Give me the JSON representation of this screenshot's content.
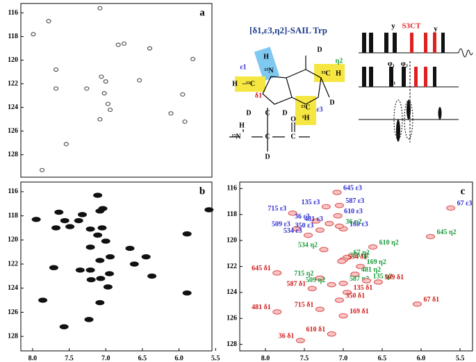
{
  "chart_data": [
    {
      "type": "scatter",
      "label": "a",
      "peak_color": "#555555",
      "x": [
        7.08,
        7.78,
        7.99,
        6.75,
        7.06,
        7.0,
        7.02,
        6.97,
        6.94,
        7.26,
        7.68,
        6.54,
        6.4,
        5.81,
        5.95,
        5.92,
        7.08,
        7.54,
        7.68,
        6.11,
        6.83,
        7.87
      ],
      "values": [
        115.6,
        116.7,
        117.8,
        118.6,
        121.4,
        121.8,
        122.8,
        123.7,
        124.2,
        122.4,
        122.4,
        121.7,
        119.0,
        119.9,
        122.9,
        125.2,
        125.0,
        127.1,
        120.8,
        124.5,
        118.7,
        129.3
      ],
      "xlim": [
        8.16,
        5.55
      ],
      "ylim": [
        129.9,
        115.2
      ],
      "yticks": [
        116,
        118,
        120,
        122,
        124,
        126,
        128
      ]
    },
    {
      "type": "scatter",
      "label": "b",
      "peak_color": "#111111",
      "x": [
        7.11,
        7.04,
        7.08,
        7.64,
        7.32,
        7.95,
        7.56,
        7.37,
        7.49,
        7.68,
        7.05,
        5.59,
        7.21,
        7.11,
        7.0,
        5.89,
        7.21,
        6.67,
        6.94,
        6.45,
        7.08,
        6.61,
        7.35,
        7.21,
        7.71,
        6.95,
        7.07,
        7.2,
        6.97,
        6.37,
        7.86,
        7.08,
        5.89,
        7.57,
        7.23
      ],
      "values": [
        116.3,
        117.4,
        117.6,
        117.7,
        117.9,
        118.3,
        118.4,
        118.4,
        118.9,
        119.0,
        119.0,
        117.5,
        119.1,
        119.6,
        120.1,
        119.5,
        120.6,
        120.7,
        121.4,
        121.4,
        121.7,
        122.0,
        122.5,
        122.5,
        122.3,
        122.8,
        123.2,
        123.3,
        123.9,
        123.0,
        125.0,
        125.2,
        124.4,
        127.2,
        126.6
      ],
      "xlim": [
        8.16,
        5.55
      ],
      "ylim": [
        129.2,
        115.2
      ],
      "yticks": [
        116,
        118,
        120,
        122,
        124,
        126,
        128
      ],
      "xticks": [
        {
          "value": 8,
          "label": "8.0"
        },
        7.5,
        {
          "value": 7,
          "label": "7.0"
        },
        6.5,
        {
          "value": 6,
          "label": "6.0"
        },
        5.5
      ]
    },
    {
      "type": "scatter",
      "label": "c",
      "peak_color": "#e06060",
      "series": [
        {
          "color": "#2b2bd0",
          "x": [
            7.08,
            7.65,
            7.22,
            7.05,
            7.35,
            7.18,
            7.07,
            7.6,
            7.3,
            7.0,
            7.45,
            5.62
          ],
          "values": [
            116.3,
            117.9,
            117.4,
            117.3,
            118.5,
            118.7,
            118.1,
            119.1,
            119.2,
            119.1,
            119.6,
            117.5
          ],
          "labels": [
            "645 ε3",
            "715 ε3",
            "135 ε3",
            "587 ε3",
            "36 ε3",
            "481 ε3",
            "610 ε3",
            "509 ε3",
            "350 ε3",
            "169 ε3",
            "534 ε3",
            "67 ε3"
          ]
        },
        {
          "color": "#1a9a3a",
          "x": [
            7.05,
            7.25,
            6.95,
            6.62,
            5.88,
            7.0,
            6.78,
            6.85,
            7.3,
            7.0,
            7.15,
            6.7
          ],
          "values": [
            118.9,
            120.7,
            121.3,
            120.5,
            119.7,
            121.5,
            122.0,
            122.6,
            122.9,
            123.3,
            123.4,
            123.1
          ],
          "labels": [
            "36 η2",
            "534 η2",
            "67 η2",
            "610 η2",
            "645 η2",
            "350 η2",
            "169 η2",
            "481 η2",
            "715 η2",
            "587 η2",
            "509 η2",
            "135 η2"
          ]
        },
        {
          "color": "#d01818",
          "x": [
            7.85,
            7.02,
            7.4,
            6.95,
            6.55,
            7.85,
            7.3,
            7.05,
            7.0,
            6.05,
            7.55,
            7.15
          ],
          "values": [
            122.5,
            121.6,
            123.7,
            124.0,
            123.2,
            125.5,
            125.3,
            124.6,
            125.8,
            124.9,
            127.7,
            127.2
          ],
          "labels": [
            "645 δ1",
            "534 δ1",
            "587 δ1",
            "135 δ1",
            "509 δ1",
            "481 δ1",
            "715 δ1",
            "350 δ1",
            "169 δ1",
            "67 δ1",
            "36 δ1",
            "610 δ1"
          ]
        }
      ],
      "xlim": [
        8.33,
        5.34
      ],
      "ylim": [
        128.5,
        115.5
      ],
      "yticks": [
        116,
        118,
        120,
        122,
        124,
        126,
        128
      ],
      "xticks": [
        {
          "value": 8,
          "label": "8.0"
        },
        7.5,
        {
          "value": 7,
          "label": "7.0"
        },
        6.5,
        {
          "value": 6,
          "label": "6.0"
        },
        5.5
      ]
    }
  ],
  "structure": {
    "title": "[δ1,ε3,η2]-SAIL Trp",
    "atoms": [
      "ε1",
      "H",
      "¹⁵N",
      "H",
      "–¹³C",
      "δ1",
      "D",
      "η2",
      "¹³C",
      "H",
      "¹³C",
      "¹H",
      "ε3",
      "D",
      "D",
      "C",
      "D",
      "H",
      "¹⁵N",
      "C",
      "C",
      "O",
      "D"
    ]
  },
  "pulse_sequence": {
    "labels": [
      "y",
      "S3CT",
      "y",
      "φ₁",
      "φ₂",
      "t₁"
    ]
  }
}
